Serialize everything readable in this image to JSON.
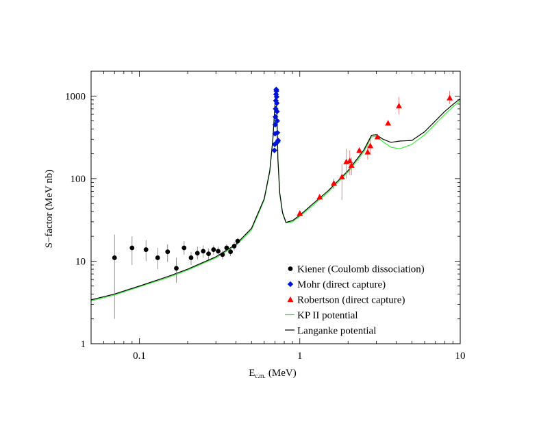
{
  "chart_data": {
    "type": "scatter",
    "xlabel_main": "E",
    "xlabel_sub": "c.m.",
    "xlabel_unit": "(MeV)",
    "ylabel": "S−factor (MeV nb)",
    "xscale": "log",
    "yscale": "log",
    "xlim": [
      0.05,
      10
    ],
    "ylim": [
      1,
      2000
    ],
    "x_ticks": [
      {
        "value": 0.1,
        "label": "0.1"
      },
      {
        "value": 1,
        "label": "1"
      },
      {
        "value": 10,
        "label": "10"
      }
    ],
    "y_ticks": [
      {
        "value": 1,
        "label": "1"
      },
      {
        "value": 10,
        "label": "10"
      },
      {
        "value": 100,
        "label": "100"
      },
      {
        "value": 1000,
        "label": "1000"
      }
    ],
    "legend_position": "bottom-right",
    "series": [
      {
        "name": "Kiener (Coulomb dissociation)",
        "kind": "points",
        "marker": "circle",
        "color": "#000000",
        "points": [
          {
            "x": 0.07,
            "y": 11,
            "lo": 2,
            "hi": 21
          },
          {
            "x": 0.09,
            "y": 14.5,
            "lo": 9,
            "hi": 20
          },
          {
            "x": 0.11,
            "y": 13.8,
            "lo": 10,
            "hi": 18
          },
          {
            "x": 0.13,
            "y": 11,
            "lo": 8,
            "hi": 14.5
          },
          {
            "x": 0.15,
            "y": 13,
            "lo": 9.8,
            "hi": 16
          },
          {
            "x": 0.17,
            "y": 8.2,
            "lo": 5.5,
            "hi": 11
          },
          {
            "x": 0.19,
            "y": 14.5,
            "lo": 12,
            "hi": 17.5
          },
          {
            "x": 0.21,
            "y": 11,
            "lo": 9,
            "hi": 13
          },
          {
            "x": 0.23,
            "y": 12.5,
            "lo": 10.5,
            "hi": 15
          },
          {
            "x": 0.25,
            "y": 13.2,
            "lo": 11,
            "hi": 15.5
          },
          {
            "x": 0.27,
            "y": 12.3,
            "lo": 10.5,
            "hi": 14.2
          },
          {
            "x": 0.29,
            "y": 13.8,
            "lo": 12,
            "hi": 15.5
          },
          {
            "x": 0.31,
            "y": 13.2,
            "lo": 11.5,
            "hi": 15
          },
          {
            "x": 0.33,
            "y": 12,
            "lo": 10.5,
            "hi": 13.5
          },
          {
            "x": 0.35,
            "y": 14.5,
            "lo": 13,
            "hi": 16
          },
          {
            "x": 0.37,
            "y": 13,
            "lo": 11.5,
            "hi": 14.5
          },
          {
            "x": 0.39,
            "y": 15.2,
            "lo": 13.5,
            "hi": 17
          },
          {
            "x": 0.41,
            "y": 17.5,
            "lo": 16,
            "hi": 19
          }
        ]
      },
      {
        "name": "Mohr (direct capture)",
        "kind": "points",
        "marker": "diamond",
        "color": "#0015d4",
        "points": [
          {
            "x": 0.695,
            "y": 220
          },
          {
            "x": 0.698,
            "y": 260
          },
          {
            "x": 0.701,
            "y": 350
          },
          {
            "x": 0.703,
            "y": 450
          },
          {
            "x": 0.705,
            "y": 560
          },
          {
            "x": 0.707,
            "y": 700
          },
          {
            "x": 0.709,
            "y": 880
          },
          {
            "x": 0.711,
            "y": 1050
          },
          {
            "x": 0.713,
            "y": 1200
          },
          {
            "x": 0.715,
            "y": 1150
          },
          {
            "x": 0.717,
            "y": 980
          },
          {
            "x": 0.719,
            "y": 820
          },
          {
            "x": 0.721,
            "y": 650
          },
          {
            "x": 0.723,
            "y": 500
          },
          {
            "x": 0.725,
            "y": 360
          },
          {
            "x": 0.728,
            "y": 280
          },
          {
            "x": 0.732,
            "y": 290
          }
        ]
      },
      {
        "name": "Robertson (direct capture)",
        "kind": "points",
        "marker": "triangle",
        "color": "#ff0000",
        "points": [
          {
            "x": 1.0,
            "y": 38,
            "lo": 35,
            "hi": 41
          },
          {
            "x": 1.33,
            "y": 60,
            "lo": 55,
            "hi": 65
          },
          {
            "x": 1.63,
            "y": 88,
            "lo": 75,
            "hi": 100
          },
          {
            "x": 1.83,
            "y": 105,
            "lo": 55,
            "hi": 150
          },
          {
            "x": 1.95,
            "y": 160,
            "lo": 100,
            "hi": 230
          },
          {
            "x": 2.05,
            "y": 165,
            "lo": 110,
            "hi": 220
          },
          {
            "x": 2.1,
            "y": 145,
            "lo": 110,
            "hi": 180
          },
          {
            "x": 2.35,
            "y": 220,
            "lo": 200,
            "hi": 240
          },
          {
            "x": 2.65,
            "y": 210,
            "lo": 170,
            "hi": 250
          },
          {
            "x": 2.75,
            "y": 250,
            "lo": 200,
            "hi": 300
          },
          {
            "x": 3.05,
            "y": 320,
            "lo": 300,
            "hi": 340
          },
          {
            "x": 3.55,
            "y": 470,
            "lo": 450,
            "hi": 490
          },
          {
            "x": 4.15,
            "y": 760,
            "lo": 600,
            "hi": 980
          },
          {
            "x": 8.6,
            "y": 950,
            "lo": 800,
            "hi": 1150
          }
        ]
      },
      {
        "name": "KP II potential",
        "kind": "line",
        "color": "#33ee33",
        "x": [
          0.05,
          0.07,
          0.1,
          0.15,
          0.2,
          0.3,
          0.4,
          0.5,
          0.6,
          0.65,
          0.68,
          0.7,
          0.71,
          0.72,
          0.73,
          0.75,
          0.78,
          0.82,
          0.9,
          1.0,
          1.2,
          1.5,
          2.0,
          2.5,
          2.8,
          3.0,
          3.3,
          3.7,
          4.2,
          5.0,
          6.0,
          7.0,
          8.0,
          9.0,
          10.0
        ],
        "y": [
          3.3,
          3.9,
          4.9,
          6.3,
          7.8,
          11.0,
          15.5,
          24.0,
          55.0,
          120.0,
          300.0,
          750.0,
          1200.0,
          600.0,
          170.0,
          65.0,
          38.0,
          29.0,
          30.0,
          35.0,
          47.0,
          68.0,
          120.0,
          210.0,
          320.0,
          325.0,
          280.0,
          240.0,
          230.0,
          260.0,
          340.0,
          460.0,
          600.0,
          740.0,
          880.0
        ]
      },
      {
        "name": "Langanke potential",
        "kind": "line",
        "color": "#000000",
        "x": [
          0.05,
          0.07,
          0.1,
          0.15,
          0.2,
          0.3,
          0.4,
          0.5,
          0.6,
          0.65,
          0.68,
          0.7,
          0.71,
          0.72,
          0.73,
          0.75,
          0.78,
          0.82,
          0.9,
          1.0,
          1.2,
          1.5,
          2.0,
          2.5,
          2.8,
          3.0,
          3.3,
          3.7,
          4.2,
          5.0,
          6.0,
          7.0,
          8.0,
          9.0,
          10.0
        ],
        "y": [
          3.4,
          4.0,
          5.0,
          6.5,
          8.0,
          11.3,
          16.0,
          25.0,
          57.0,
          125.0,
          310.0,
          780.0,
          1250.0,
          620.0,
          175.0,
          67.0,
          39.0,
          29.5,
          31.0,
          36.0,
          49.0,
          71.0,
          125.0,
          220.0,
          335.0,
          340.0,
          300.0,
          275.0,
          285.0,
          290.0,
          370.0,
          500.0,
          650.0,
          790.0,
          930.0
        ]
      }
    ]
  }
}
